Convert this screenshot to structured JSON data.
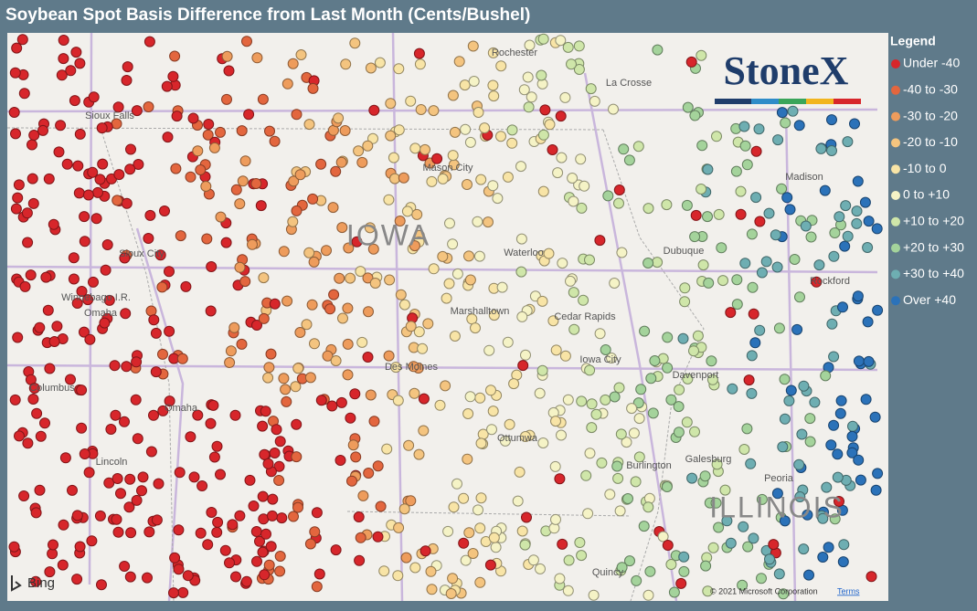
{
  "header": {
    "title": "Soybean Spot Basis Difference from Last Month (Cents/Bushel)"
  },
  "legend": {
    "title": "Legend",
    "items": [
      {
        "label": "Under -40",
        "color": "#d7262b"
      },
      {
        "label": "-40 to -30",
        "color": "#e3663e"
      },
      {
        "label": "-30 to -20",
        "color": "#ee9c5c"
      },
      {
        "label": "-20 to -10",
        "color": "#f4c47f"
      },
      {
        "label": "-10 to 0",
        "color": "#f8e4a6"
      },
      {
        "label": "0 to +10",
        "color": "#f5f3c6"
      },
      {
        "label": "+10 to +20",
        "color": "#cfe6a9"
      },
      {
        "label": "+20 to +30",
        "color": "#a4d39b"
      },
      {
        "label": "+30 to +40",
        "color": "#6eaeb2"
      },
      {
        "label": "Over +40",
        "color": "#2b72b9"
      }
    ]
  },
  "map": {
    "labels": [
      "Rochester",
      "La Crosse",
      "Madison",
      "Sioux Falls",
      "Mason City",
      "IOWA",
      "Sioux City",
      "Waterloo",
      "Dubuque",
      "Rockford",
      "Winnebago I.R.",
      "Omaha",
      "Marshalltown",
      "Cedar Rapids",
      "Des Moines",
      "Iowa City",
      "Davenport",
      "Columbus",
      "Omaha",
      "Ottumwa",
      "Galesburg",
      "Lincoln",
      "Peoria",
      "Burlington",
      "ILLINOIS",
      "Quincy"
    ],
    "logo": "StoneX",
    "provider": "Bing",
    "attribution": "© 2021 Microsoft Corporation",
    "terms": "Terms"
  }
}
